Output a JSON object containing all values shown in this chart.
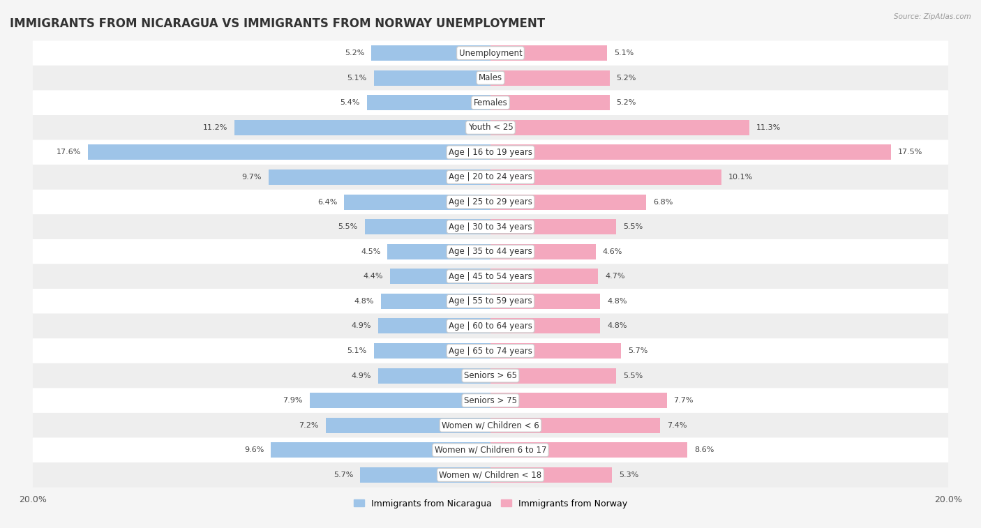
{
  "title": "IMMIGRANTS FROM NICARAGUA VS IMMIGRANTS FROM NORWAY UNEMPLOYMENT",
  "source": "Source: ZipAtlas.com",
  "categories": [
    "Unemployment",
    "Males",
    "Females",
    "Youth < 25",
    "Age | 16 to 19 years",
    "Age | 20 to 24 years",
    "Age | 25 to 29 years",
    "Age | 30 to 34 years",
    "Age | 35 to 44 years",
    "Age | 45 to 54 years",
    "Age | 55 to 59 years",
    "Age | 60 to 64 years",
    "Age | 65 to 74 years",
    "Seniors > 65",
    "Seniors > 75",
    "Women w/ Children < 6",
    "Women w/ Children 6 to 17",
    "Women w/ Children < 18"
  ],
  "nicaragua_values": [
    5.2,
    5.1,
    5.4,
    11.2,
    17.6,
    9.7,
    6.4,
    5.5,
    4.5,
    4.4,
    4.8,
    4.9,
    5.1,
    4.9,
    7.9,
    7.2,
    9.6,
    5.7
  ],
  "norway_values": [
    5.1,
    5.2,
    5.2,
    11.3,
    17.5,
    10.1,
    6.8,
    5.5,
    4.6,
    4.7,
    4.8,
    4.8,
    5.7,
    5.5,
    7.7,
    7.4,
    8.6,
    5.3
  ],
  "nicaragua_color": "#9ec4e8",
  "norway_color": "#f4a8be",
  "row_colors": [
    "#ffffff",
    "#eeeeee"
  ],
  "background_color": "#f5f5f5",
  "max_value": 20.0,
  "legend_nicaragua": "Immigrants from Nicaragua",
  "legend_norway": "Immigrants from Norway",
  "title_fontsize": 12,
  "label_fontsize": 8.5,
  "value_fontsize": 8.0
}
